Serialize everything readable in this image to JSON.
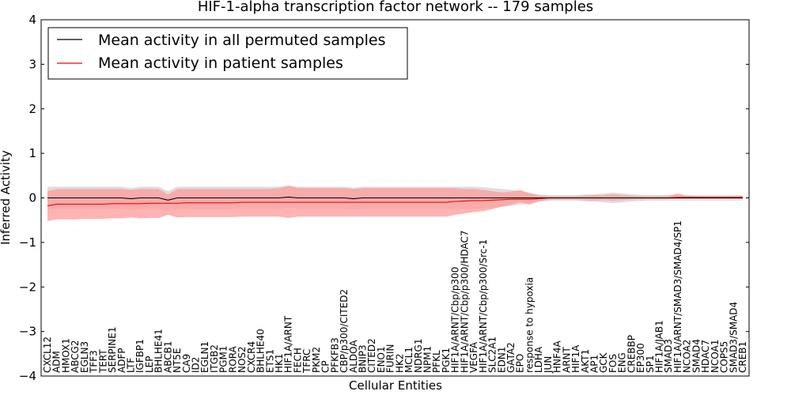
{
  "chart_data": {
    "type": "line",
    "title": "HIF-1-alpha transcription factor network -- 179 samples",
    "xlabel": "Cellular Entities",
    "ylabel": "Inferred Activity",
    "ylim": [
      -4,
      4
    ],
    "yticks": [
      "−4",
      "−3",
      "−2",
      "−1",
      "0",
      "1",
      "2",
      "3",
      "4"
    ],
    "legend": {
      "placement": "top-left",
      "entries": [
        {
          "label": "Mean activity in all permuted samples",
          "color": "#000000"
        },
        {
          "label": "Mean activity in patient samples",
          "color": "#ff0000"
        }
      ]
    },
    "categories": [
      "CXCL12",
      "ADM",
      "HMOX1",
      "ABCG2",
      "EGLN3",
      "TFF3",
      "TERT",
      "SERPINE1",
      "ADFP",
      "LTF",
      "IGFBP1",
      "LEP",
      "BHLHE41",
      "ABCB1",
      "NT5E",
      "CA9",
      "ID2",
      "EGLN1",
      "ITGB2",
      "PGM1",
      "RORA",
      "NOS2",
      "CXCR4",
      "BHLHE40",
      "ETS1",
      "HK1",
      "HIF1A/ARNT",
      "FECH",
      "TFRC",
      "PKM2",
      "CP",
      "PFKFB3",
      "CBP/p300/CITED2",
      "ALDOA",
      "BNIP3",
      "CITED2",
      "ENO1",
      "FURIN",
      "HK2",
      "MCL1",
      "NDRG1",
      "NPM1",
      "PFKL",
      "PGK1",
      "HIF1A/ARNT/Cbp/p300",
      "HIF1A/ARNT/Cbp/p300/HDAC7",
      "VEGFA",
      "HIF1A/ARNT/Cbp/p300/Src-1",
      "SLC2A1",
      "EDN1",
      "GATA2",
      "EPO",
      "response to hypoxia",
      "LDHA",
      "JUN",
      "HNF4A",
      "ARNT",
      "HIF1A",
      "AKT1",
      "AP1",
      "GCK",
      "FOS",
      "ENG",
      "CREBBP",
      "EP300",
      "SP1",
      "HIF1A/JAB1",
      "SMAD3",
      "HIF1A/ARNT/SMAD3/SMAD4/SP1",
      "NCOA2",
      "SMAD4",
      "HDAC7",
      "NCOA1",
      "COPS5",
      "SMAD3/SMAD4",
      "CREB1"
    ],
    "series": [
      {
        "name": "Mean activity in all permuted samples",
        "color": "#000000",
        "band_color": "#c8c8c8",
        "values": [
          0.0,
          0.0,
          0.0,
          0.0,
          0.0,
          0.0,
          0.0,
          0.0,
          0.0,
          -0.02,
          0.0,
          0.0,
          0.0,
          -0.05,
          0.0,
          0.0,
          0.0,
          0.0,
          0.0,
          0.0,
          0.0,
          0.0,
          0.0,
          0.0,
          0.0,
          0.0,
          0.02,
          0.0,
          0.0,
          0.0,
          0.0,
          0.0,
          0.0,
          -0.02,
          0.0,
          0.0,
          0.0,
          0.0,
          0.0,
          0.0,
          0.0,
          0.0,
          0.0,
          0.0,
          0.0,
          0.0,
          0.0,
          0.0,
          0.0,
          0.0,
          0.0,
          0.0,
          0.0,
          0.0,
          0.0,
          0.0,
          0.0,
          0.0,
          0.0,
          0.0,
          0.0,
          0.0,
          0.0,
          0.0,
          0.0,
          0.0,
          0.0,
          0.0,
          0.0,
          0.0,
          0.0,
          0.0,
          0.0,
          0.0,
          0.0,
          0.0
        ],
        "upper": [
          0.25,
          0.25,
          0.25,
          0.25,
          0.25,
          0.25,
          0.25,
          0.25,
          0.25,
          0.22,
          0.25,
          0.25,
          0.25,
          0.15,
          0.25,
          0.25,
          0.25,
          0.25,
          0.25,
          0.25,
          0.25,
          0.25,
          0.25,
          0.25,
          0.25,
          0.25,
          0.28,
          0.25,
          0.25,
          0.25,
          0.25,
          0.25,
          0.25,
          0.23,
          0.25,
          0.25,
          0.25,
          0.25,
          0.25,
          0.25,
          0.25,
          0.25,
          0.25,
          0.25,
          0.25,
          0.25,
          0.25,
          0.24,
          0.22,
          0.2,
          0.18,
          0.15,
          0.12,
          0.08,
          0.06,
          0.06,
          0.06,
          0.06,
          0.08,
          0.08,
          0.1,
          0.12,
          0.1,
          0.08,
          0.07,
          0.06,
          0.06,
          0.06,
          0.06,
          0.06,
          0.06,
          0.06,
          0.06,
          0.06,
          0.06,
          0.06
        ],
        "lower": [
          -0.25,
          -0.25,
          -0.25,
          -0.25,
          -0.25,
          -0.25,
          -0.25,
          -0.25,
          -0.25,
          -0.27,
          -0.25,
          -0.25,
          -0.25,
          -0.3,
          -0.25,
          -0.25,
          -0.25,
          -0.25,
          -0.25,
          -0.25,
          -0.25,
          -0.25,
          -0.25,
          -0.25,
          -0.25,
          -0.25,
          -0.22,
          -0.25,
          -0.25,
          -0.25,
          -0.25,
          -0.25,
          -0.25,
          -0.27,
          -0.25,
          -0.25,
          -0.25,
          -0.25,
          -0.25,
          -0.25,
          -0.25,
          -0.25,
          -0.25,
          -0.25,
          -0.25,
          -0.25,
          -0.25,
          -0.24,
          -0.22,
          -0.2,
          -0.18,
          -0.15,
          -0.12,
          -0.08,
          -0.06,
          -0.06,
          -0.06,
          -0.06,
          -0.08,
          -0.08,
          -0.1,
          -0.12,
          -0.1,
          -0.08,
          -0.07,
          -0.06,
          -0.06,
          -0.06,
          -0.06,
          -0.06,
          -0.06,
          -0.06,
          -0.06,
          -0.06,
          -0.06,
          -0.06
        ]
      },
      {
        "name": "Mean activity in patient samples",
        "color": "#ff0000",
        "band_color": "#ff9a9a",
        "values": [
          -0.18,
          -0.14,
          -0.14,
          -0.14,
          -0.14,
          -0.14,
          -0.14,
          -0.13,
          -0.13,
          -0.13,
          -0.13,
          -0.12,
          -0.12,
          -0.12,
          -0.12,
          -0.11,
          -0.11,
          -0.11,
          -0.11,
          -0.11,
          -0.11,
          -0.1,
          -0.1,
          -0.1,
          -0.1,
          -0.1,
          -0.1,
          -0.1,
          -0.1,
          -0.1,
          -0.1,
          -0.1,
          -0.1,
          -0.1,
          -0.1,
          -0.1,
          -0.1,
          -0.1,
          -0.1,
          -0.1,
          -0.1,
          -0.1,
          -0.1,
          -0.1,
          -0.08,
          -0.07,
          -0.06,
          -0.06,
          -0.05,
          -0.04,
          -0.03,
          -0.03,
          -0.03,
          -0.02,
          0.0,
          0.0,
          0.0,
          0.0,
          0.0,
          0.0,
          0.0,
          0.0,
          0.0,
          0.0,
          0.0,
          0.0,
          0.0,
          0.0,
          0.01,
          0.01,
          0.01,
          0.01,
          0.01,
          0.01,
          0.01,
          0.01
        ],
        "upper": [
          0.15,
          0.2,
          0.2,
          0.2,
          0.2,
          0.2,
          0.2,
          0.2,
          0.2,
          0.18,
          0.2,
          0.2,
          0.2,
          0.08,
          0.2,
          0.2,
          0.2,
          0.2,
          0.2,
          0.2,
          0.2,
          0.2,
          0.2,
          0.2,
          0.2,
          0.22,
          0.27,
          0.22,
          0.22,
          0.22,
          0.22,
          0.22,
          0.22,
          0.2,
          0.22,
          0.22,
          0.22,
          0.22,
          0.22,
          0.22,
          0.22,
          0.22,
          0.22,
          0.22,
          0.22,
          0.2,
          0.2,
          0.18,
          0.15,
          0.12,
          0.14,
          0.18,
          0.1,
          0.05,
          0.04,
          0.04,
          0.04,
          0.04,
          0.05,
          0.06,
          0.06,
          0.08,
          0.06,
          0.05,
          0.04,
          0.04,
          0.04,
          0.05,
          0.1,
          0.05,
          0.04,
          0.04,
          0.04,
          0.04,
          0.04,
          0.04
        ],
        "lower": [
          -0.52,
          -0.48,
          -0.48,
          -0.48,
          -0.47,
          -0.47,
          -0.47,
          -0.46,
          -0.46,
          -0.44,
          -0.46,
          -0.45,
          -0.45,
          -0.38,
          -0.44,
          -0.43,
          -0.43,
          -0.43,
          -0.43,
          -0.43,
          -0.43,
          -0.42,
          -0.42,
          -0.42,
          -0.42,
          -0.42,
          -0.45,
          -0.42,
          -0.42,
          -0.42,
          -0.42,
          -0.42,
          -0.42,
          -0.42,
          -0.42,
          -0.42,
          -0.42,
          -0.42,
          -0.42,
          -0.42,
          -0.42,
          -0.42,
          -0.42,
          -0.42,
          -0.38,
          -0.35,
          -0.32,
          -0.3,
          -0.25,
          -0.2,
          -0.15,
          -0.1,
          -0.15,
          -0.08,
          -0.05,
          -0.04,
          -0.04,
          -0.04,
          -0.05,
          -0.06,
          -0.05,
          -0.06,
          -0.05,
          -0.04,
          -0.03,
          -0.03,
          -0.03,
          -0.03,
          -0.02,
          -0.02,
          -0.02,
          -0.02,
          -0.02,
          -0.02,
          -0.02,
          -0.02
        ]
      }
    ]
  }
}
